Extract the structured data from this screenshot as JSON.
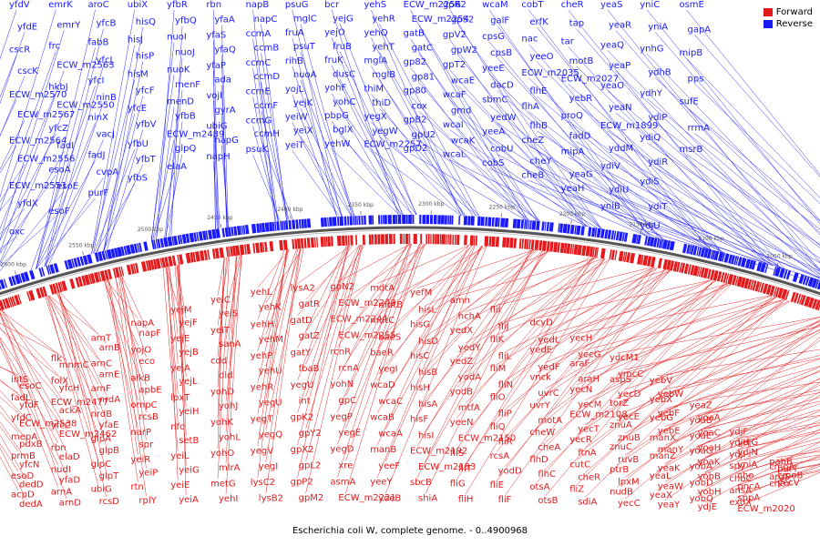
{
  "caption": "Escherichia coli W, complete genome. - 0..4900968",
  "legend": [
    {
      "label": "Forward",
      "color": "#e41a1c"
    },
    {
      "label": "Reverse",
      "color": "#1a1aff"
    }
  ],
  "colors": {
    "forward": "#e41a1c",
    "reverse": "#1a1aff",
    "backbone": "#555555"
  },
  "ticks": [
    "1800 kbp",
    "1850 kbp",
    "1900 kbp",
    "1950 kbp",
    "2000 kbp",
    "2050 kbp",
    "2100 kbp",
    "2150 kbp",
    "2200 kbp",
    "2250 kbp",
    "2300 kbp",
    "2350 kbp",
    "2400 kbp",
    "2450 kbp",
    "2500 kbp",
    "2550 kbp",
    "2600 kbp",
    "2650 kbp"
  ],
  "reverse_labels": [
    "yfdV",
    "yfdE",
    "cscR",
    "cscK",
    "ECW_m2570",
    "ECW_m2567",
    "ECW_m2564",
    "ECW_m2556",
    "ECW_m2551",
    "yfdX",
    "oxc",
    "emrK",
    "emrY",
    "frc",
    "ECW_m2563",
    "hkbJ",
    "ECW_m2550",
    "yfcZ",
    "fadI",
    "esoA",
    "esoE",
    "esoF",
    "aroC",
    "yfcB",
    "fabB",
    "yfcJ",
    "yfcI",
    "ninB",
    "ninX",
    "vacJ",
    "fadJ",
    "cvpA",
    "purF",
    "ubiX",
    "hisQ",
    "hisJ",
    "hisP",
    "hisM",
    "yfcF",
    "yfcE",
    "yfbV",
    "yfbU",
    "yfbT",
    "yfbS",
    "yfbR",
    "yfbQ",
    "nuoI",
    "nuoJ",
    "nuoK",
    "menF",
    "menD",
    "yfbB",
    "ECW_m2439",
    "glpQ",
    "elaA",
    "rbn",
    "yfaA",
    "yfaS",
    "yfaQ",
    "yfaP",
    "ada",
    "vojI",
    "gyrA",
    "ubiG",
    "napG",
    "napH",
    "napB",
    "napC",
    "ccmA",
    "ccmB",
    "ccmC",
    "ccmD",
    "ccmE",
    "ccmF",
    "ccmG",
    "ccmH",
    "psuK",
    "psuG",
    "mglC",
    "fruA",
    "psuT",
    "rihB",
    "nuoA",
    "yojL",
    "yejK",
    "yeiW",
    "yeiX",
    "yeiT",
    "bcr",
    "yejG",
    "yejO",
    "fruB",
    "fruK",
    "dusC",
    "yohF",
    "yohC",
    "pbpG",
    "bglX",
    "yehW",
    "yehS",
    "yehR",
    "yehQ",
    "yehT",
    "mglA",
    "mglB",
    "thiM",
    "thiD",
    "yegX",
    "yegW",
    "ECW_m2257",
    "ECW_m2256",
    "ECW_m2254",
    "gatB",
    "gatC",
    "gp82",
    "gp81",
    "gp80",
    "cox",
    "gpB2",
    "gpU2",
    "gpD2",
    "gpR2",
    "gpS2",
    "gpV2",
    "gpW2",
    "gpT2",
    "wcaE",
    "wcaF",
    "gmd",
    "wcaI",
    "wcaK",
    "wcaL",
    "wcaM",
    "galF",
    "cpsG",
    "cpsB",
    "yeeE",
    "dacD",
    "sbmC",
    "yedW",
    "yeeA",
    "cobU",
    "cobS",
    "cobT",
    "erfK",
    "nac",
    "yeeO",
    "ECW_m2035",
    "flhE",
    "flhA",
    "flhB",
    "cheZ",
    "cheY",
    "cheB",
    "cheR",
    "tap",
    "tar",
    "motB",
    "ECW_m2027",
    "yebR",
    "proQ",
    "fadD",
    "mipA",
    "yeaG",
    "yeaH",
    "yeaS",
    "yeaR",
    "yeaQ",
    "yeaP",
    "yeaO",
    "yeaN",
    "ECW_m1899",
    "yddM",
    "ydiV",
    "ydiU",
    "yniB",
    "yniC",
    "yniA",
    "ynhG",
    "ydhB",
    "ydhY",
    "ydiP",
    "ydiQ",
    "ydiR",
    "ydiS",
    "ydiT",
    "ydjU",
    "osmE",
    "gapA",
    "mipB",
    "pps",
    "sufE",
    "rrmA",
    "msrB"
  ],
  "forward_labels": [
    "intS",
    "esoC",
    "fadL",
    "yfdF",
    "yfdC",
    "ECW_m2538",
    "mepA",
    "pdxB",
    "prmB",
    "yfcN",
    "esoD",
    "dedD",
    "acpD",
    "dedA",
    "flk",
    "mnmC",
    "folX",
    "yfcH",
    "ECW_m2477",
    "ackA",
    "yfcC",
    "ECW_m2462",
    "rbn",
    "elaD",
    "nudI",
    "yfaD",
    "arnA",
    "arnD",
    "arnT",
    "arnB",
    "arnC",
    "arnE",
    "arnF",
    "nrdA",
    "nrdB",
    "yfaE",
    "glpA",
    "glpB",
    "glpC",
    "glpT",
    "ubiG",
    "rcsD",
    "napA",
    "napF",
    "yojO",
    "eco",
    "alkB",
    "apbE",
    "ompC",
    "rcsB",
    "narP",
    "spr",
    "yeiR",
    "yeiP",
    "rtn",
    "rplY",
    "yejM",
    "yejF",
    "yejE",
    "yejB",
    "yejA",
    "yejL",
    "lpxT",
    "yeiH",
    "nfo",
    "setB",
    "yeiL",
    "yeiG",
    "yeiE",
    "yeiA",
    "yeiC",
    "yeiS",
    "yeiT",
    "sanA",
    "cdd",
    "dld",
    "yohD",
    "yohJ",
    "yohK",
    "yohL",
    "yohO",
    "mlrA",
    "metG",
    "yehI",
    "yehL",
    "yehK",
    "yehH",
    "yehM",
    "yehP",
    "yehU",
    "yehR",
    "yegU",
    "yegT",
    "yegQ",
    "yegV",
    "yegI",
    "lysC2",
    "lysB2",
    "lysA2",
    "gatR",
    "gatD",
    "gatZ",
    "gatY",
    "fbaB",
    "yegU",
    "int",
    "gpK2",
    "gpY2",
    "gpX2",
    "gpL2",
    "gpP2",
    "gpM2",
    "gpN2",
    "ECW_m2243",
    "ECW_m2244",
    "ECW_m2255",
    "rcnR",
    "rcnA",
    "yohN",
    "gpC",
    "yegP",
    "yegE",
    "yegD",
    "xre",
    "asmA",
    "ECW_m2221",
    "mdtA",
    "mdtB",
    "mdtC",
    "baeS",
    "baeR",
    "yegI",
    "wcaD",
    "wcaC",
    "wcaB",
    "wcaA",
    "manB",
    "yeeF",
    "yeeY",
    "yoeB",
    "yefM",
    "hisL",
    "hisG",
    "hisD",
    "hisC",
    "hisB",
    "hisH",
    "hisA",
    "hisF",
    "hisI",
    "ECW_m2192",
    "ECW_m2193",
    "sbcB",
    "shiA",
    "amn",
    "hchA",
    "yedX",
    "yedY",
    "yedZ",
    "yodA",
    "yodB",
    "mtfA",
    "yeeN",
    "ECW_m2150",
    "fliS",
    "fliT",
    "fliG",
    "fliH",
    "fliI",
    "fliJ",
    "fliK",
    "fliL",
    "fliM",
    "fliN",
    "fliO",
    "fliP",
    "fliQ",
    "fliR",
    "rcsA",
    "yodD",
    "fliE",
    "fliF",
    "dcyD",
    "yedL",
    "yedE",
    "yedF",
    "vnck",
    "uvrC",
    "uvrY",
    "motA",
    "cheW",
    "cheA",
    "flhD",
    "flhC",
    "otsA",
    "otsB",
    "yecH",
    "yecG",
    "araF",
    "araH",
    "yecN",
    "yecM",
    "ECW_m2108",
    "yecT",
    "yecR",
    "ftnA",
    "cutC",
    "cheR",
    "fliZ",
    "sdiA",
    "ydcM1",
    "ymcC",
    "aspS",
    "yecD",
    "torZ",
    "yecE",
    "znuA",
    "znuB",
    "znuC",
    "ruvB",
    "ptrB",
    "lpxM",
    "nudB",
    "yecC",
    "yebV",
    "yebW",
    "yebX",
    "yebF",
    "yebG",
    "yebE",
    "manX",
    "manY",
    "manZ",
    "yeaK",
    "yeaL",
    "yeaW",
    "yeaX",
    "yeaY",
    "yeaZ",
    "yoaA",
    "yoaB",
    "yoaC",
    "yoaE",
    "yoaH",
    "yoaG",
    "yoaK",
    "yobA",
    "yobB",
    "yobD",
    "yobH",
    "yobQ",
    "ydjE",
    "ydjF",
    "ydjG",
    "ydjH",
    "ydjN",
    "ydjI",
    "yniA",
    "spy",
    "cho",
    "chbC",
    "pncA",
    "ansA",
    "sppA",
    "exoX",
    "ECW_m2020",
    "pabB",
    "purT",
    "cmoA",
    "cmoB",
    "argS",
    "yecV",
    "cheY"
  ]
}
